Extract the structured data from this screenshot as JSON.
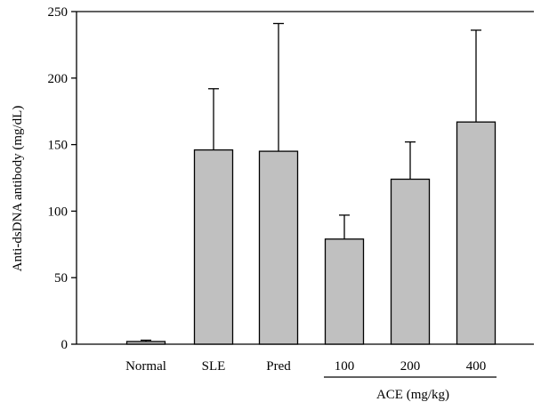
{
  "chart_data": {
    "type": "bar",
    "title": "",
    "ylabel": "Anti-dsDNA antibody (mg/dL)",
    "xlabel": "",
    "ylim": [
      0,
      250
    ],
    "yticks": [
      0,
      50,
      100,
      150,
      200,
      250
    ],
    "grid": false,
    "categories": [
      "Normal",
      "SLE",
      "Pred",
      "100",
      "200",
      "400"
    ],
    "values": [
      2,
      146,
      145,
      79,
      124,
      167
    ],
    "error_upper": [
      1,
      46,
      96,
      18,
      28,
      69
    ],
    "bar_color": "#c0c0c0",
    "group_label": {
      "text": "ACE (mg/kg)",
      "categories": [
        "100",
        "200",
        "400"
      ]
    }
  }
}
